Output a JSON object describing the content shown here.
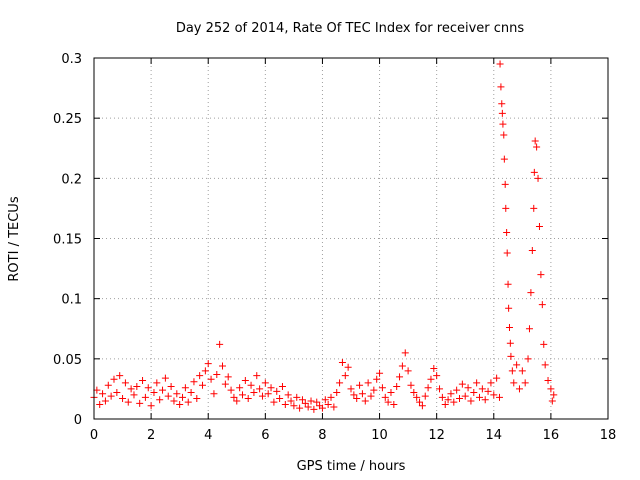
{
  "chart_data": {
    "type": "scatter",
    "title": "Day 252 of 2014, Rate Of TEC Index for receiver cnns",
    "xlabel": "GPS time / hours",
    "ylabel": "ROTI / TECUs",
    "xlim": [
      0,
      18
    ],
    "ylim": [
      0,
      0.3
    ],
    "xticks": [
      0,
      2,
      4,
      6,
      8,
      10,
      12,
      14,
      16,
      18
    ],
    "xtick_labels": [
      "0",
      "2",
      "4",
      "6",
      "8",
      "10",
      "12",
      "14",
      "16",
      "18"
    ],
    "yticks": [
      0,
      0.05,
      0.1,
      0.15,
      0.2,
      0.25,
      0.3
    ],
    "ytick_labels": [
      "0",
      "0.05",
      "0.1",
      "0.15",
      "0.2",
      "0.25",
      "0.3"
    ],
    "grid": true,
    "marker": "+",
    "color": "#ff0000",
    "series": [
      {
        "name": "ROTI",
        "points": [
          [
            0.0,
            0.018
          ],
          [
            0.1,
            0.024
          ],
          [
            0.2,
            0.012
          ],
          [
            0.3,
            0.021
          ],
          [
            0.4,
            0.015
          ],
          [
            0.5,
            0.028
          ],
          [
            0.6,
            0.019
          ],
          [
            0.7,
            0.033
          ],
          [
            0.8,
            0.022
          ],
          [
            0.9,
            0.036
          ],
          [
            1.0,
            0.017
          ],
          [
            1.1,
            0.03
          ],
          [
            1.2,
            0.014
          ],
          [
            1.3,
            0.025
          ],
          [
            1.4,
            0.02
          ],
          [
            1.5,
            0.027
          ],
          [
            1.6,
            0.013
          ],
          [
            1.7,
            0.032
          ],
          [
            1.8,
            0.018
          ],
          [
            1.9,
            0.026
          ],
          [
            2.0,
            0.011
          ],
          [
            2.1,
            0.022
          ],
          [
            2.2,
            0.03
          ],
          [
            2.3,
            0.016
          ],
          [
            2.4,
            0.024
          ],
          [
            2.5,
            0.034
          ],
          [
            2.6,
            0.019
          ],
          [
            2.7,
            0.027
          ],
          [
            2.8,
            0.015
          ],
          [
            2.9,
            0.021
          ],
          [
            3.0,
            0.012
          ],
          [
            3.1,
            0.018
          ],
          [
            3.2,
            0.026
          ],
          [
            3.3,
            0.014
          ],
          [
            3.4,
            0.022
          ],
          [
            3.5,
            0.031
          ],
          [
            3.6,
            0.017
          ],
          [
            3.7,
            0.036
          ],
          [
            3.8,
            0.028
          ],
          [
            3.9,
            0.04
          ],
          [
            4.0,
            0.046
          ],
          [
            4.1,
            0.033
          ],
          [
            4.2,
            0.021
          ],
          [
            4.3,
            0.037
          ],
          [
            4.4,
            0.062
          ],
          [
            4.5,
            0.044
          ],
          [
            4.6,
            0.029
          ],
          [
            4.7,
            0.035
          ],
          [
            4.8,
            0.024
          ],
          [
            4.9,
            0.018
          ],
          [
            5.0,
            0.015
          ],
          [
            5.1,
            0.026
          ],
          [
            5.2,
            0.02
          ],
          [
            5.3,
            0.032
          ],
          [
            5.4,
            0.017
          ],
          [
            5.5,
            0.028
          ],
          [
            5.6,
            0.022
          ],
          [
            5.7,
            0.036
          ],
          [
            5.8,
            0.025
          ],
          [
            5.9,
            0.019
          ],
          [
            6.0,
            0.03
          ],
          [
            6.1,
            0.021
          ],
          [
            6.2,
            0.026
          ],
          [
            6.3,
            0.014
          ],
          [
            6.4,
            0.023
          ],
          [
            6.5,
            0.017
          ],
          [
            6.6,
            0.027
          ],
          [
            6.7,
            0.012
          ],
          [
            6.8,
            0.02
          ],
          [
            6.9,
            0.015
          ],
          [
            7.0,
            0.011
          ],
          [
            7.1,
            0.018
          ],
          [
            7.2,
            0.009
          ],
          [
            7.3,
            0.016
          ],
          [
            7.4,
            0.013
          ],
          [
            7.5,
            0.01
          ],
          [
            7.6,
            0.015
          ],
          [
            7.7,
            0.008
          ],
          [
            7.8,
            0.014
          ],
          [
            7.9,
            0.011
          ],
          [
            8.0,
            0.009
          ],
          [
            8.1,
            0.016
          ],
          [
            8.2,
            0.012
          ],
          [
            8.3,
            0.018
          ],
          [
            8.4,
            0.01
          ],
          [
            8.5,
            0.022
          ],
          [
            8.6,
            0.03
          ],
          [
            8.7,
            0.047
          ],
          [
            8.8,
            0.036
          ],
          [
            8.9,
            0.043
          ],
          [
            9.0,
            0.025
          ],
          [
            9.1,
            0.02
          ],
          [
            9.2,
            0.017
          ],
          [
            9.3,
            0.028
          ],
          [
            9.4,
            0.021
          ],
          [
            9.5,
            0.015
          ],
          [
            9.6,
            0.03
          ],
          [
            9.7,
            0.019
          ],
          [
            9.8,
            0.024
          ],
          [
            9.9,
            0.033
          ],
          [
            10.0,
            0.038
          ],
          [
            10.1,
            0.026
          ],
          [
            10.2,
            0.018
          ],
          [
            10.3,
            0.014
          ],
          [
            10.4,
            0.022
          ],
          [
            10.5,
            0.012
          ],
          [
            10.6,
            0.027
          ],
          [
            10.7,
            0.035
          ],
          [
            10.8,
            0.044
          ],
          [
            10.9,
            0.055
          ],
          [
            11.0,
            0.04
          ],
          [
            11.1,
            0.028
          ],
          [
            11.2,
            0.022
          ],
          [
            11.3,
            0.018
          ],
          [
            11.4,
            0.014
          ],
          [
            11.5,
            0.011
          ],
          [
            11.6,
            0.019
          ],
          [
            11.7,
            0.026
          ],
          [
            11.8,
            0.033
          ],
          [
            11.9,
            0.042
          ],
          [
            12.0,
            0.036
          ],
          [
            12.1,
            0.025
          ],
          [
            12.2,
            0.018
          ],
          [
            12.3,
            0.012
          ],
          [
            12.4,
            0.016
          ],
          [
            12.5,
            0.021
          ],
          [
            12.6,
            0.014
          ],
          [
            12.7,
            0.024
          ],
          [
            12.8,
            0.017
          ],
          [
            12.9,
            0.029
          ],
          [
            13.0,
            0.019
          ],
          [
            13.1,
            0.026
          ],
          [
            13.2,
            0.015
          ],
          [
            13.3,
            0.022
          ],
          [
            13.4,
            0.03
          ],
          [
            13.5,
            0.018
          ],
          [
            13.6,
            0.025
          ],
          [
            13.7,
            0.016
          ],
          [
            13.8,
            0.023
          ],
          [
            13.9,
            0.03
          ],
          [
            14.0,
            0.02
          ],
          [
            14.1,
            0.034
          ],
          [
            14.2,
            0.018
          ],
          [
            14.22,
            0.295
          ],
          [
            14.25,
            0.276
          ],
          [
            14.28,
            0.262
          ],
          [
            14.3,
            0.254
          ],
          [
            14.32,
            0.245
          ],
          [
            14.35,
            0.236
          ],
          [
            14.37,
            0.216
          ],
          [
            14.4,
            0.195
          ],
          [
            14.42,
            0.175
          ],
          [
            14.45,
            0.155
          ],
          [
            14.47,
            0.138
          ],
          [
            14.5,
            0.112
          ],
          [
            14.52,
            0.092
          ],
          [
            14.55,
            0.076
          ],
          [
            14.58,
            0.063
          ],
          [
            14.6,
            0.052
          ],
          [
            14.65,
            0.04
          ],
          [
            14.7,
            0.03
          ],
          [
            14.8,
            0.045
          ],
          [
            14.9,
            0.025
          ],
          [
            15.0,
            0.04
          ],
          [
            15.1,
            0.03
          ],
          [
            15.2,
            0.05
          ],
          [
            15.25,
            0.075
          ],
          [
            15.3,
            0.105
          ],
          [
            15.35,
            0.14
          ],
          [
            15.4,
            0.175
          ],
          [
            15.42,
            0.205
          ],
          [
            15.45,
            0.231
          ],
          [
            15.5,
            0.226
          ],
          [
            15.55,
            0.2
          ],
          [
            15.6,
            0.16
          ],
          [
            15.65,
            0.12
          ],
          [
            15.7,
            0.095
          ],
          [
            15.75,
            0.062
          ],
          [
            15.8,
            0.045
          ],
          [
            15.9,
            0.032
          ],
          [
            16.0,
            0.025
          ],
          [
            16.05,
            0.015
          ],
          [
            16.1,
            0.02
          ]
        ]
      }
    ]
  }
}
